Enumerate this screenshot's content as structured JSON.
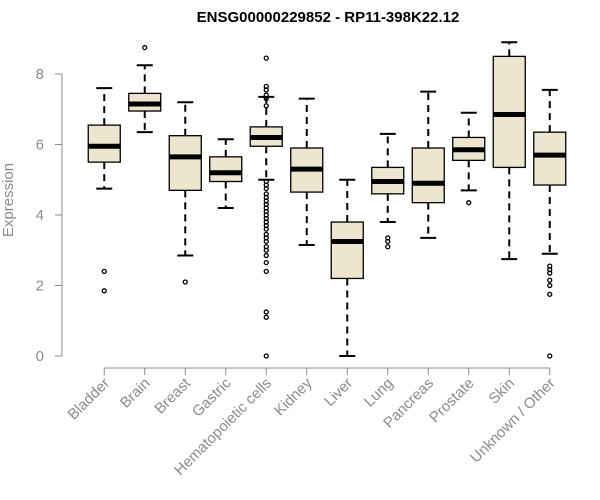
{
  "chart_data": {
    "type": "boxplot",
    "title": "ENSG00000229852 - RP11-398K22.12",
    "ylabel": "Expression",
    "xlabel": "",
    "ylim": [
      0,
      9
    ],
    "yticks": [
      0,
      2,
      4,
      6,
      8
    ],
    "grid": false,
    "legend": "none",
    "colors": {
      "box_fill": "#ede6cf",
      "box_stroke": "#000000",
      "axis": "#8c8c8c"
    },
    "categories": [
      "Bladder",
      "Brain",
      "Breast",
      "Gastric",
      "Hematopoietic cells",
      "Kidney",
      "Liver",
      "Lung",
      "Pancreas",
      "Prostate",
      "Skin",
      "Unknown / Other"
    ],
    "boxes": [
      {
        "q1": 5.5,
        "median": 5.95,
        "q3": 6.55,
        "whisker_low": 4.75,
        "whisker_high": 7.6,
        "outliers": [
          2.4,
          1.85
        ]
      },
      {
        "q1": 6.95,
        "median": 7.15,
        "q3": 7.45,
        "whisker_low": 6.35,
        "whisker_high": 8.25,
        "outliers": [
          8.75
        ]
      },
      {
        "q1": 4.7,
        "median": 5.65,
        "q3": 6.25,
        "whisker_low": 2.85,
        "whisker_high": 7.2,
        "outliers": [
          2.1
        ]
      },
      {
        "q1": 4.95,
        "median": 5.2,
        "q3": 5.65,
        "whisker_low": 4.2,
        "whisker_high": 6.15,
        "outliers": []
      },
      {
        "q1": 5.95,
        "median": 6.2,
        "q3": 6.5,
        "whisker_low": 5.0,
        "whisker_high": 7.35,
        "outliers": [
          8.45,
          7.65,
          7.55,
          7.4,
          7.3,
          7.1,
          4.95,
          4.85,
          4.75,
          4.6,
          4.5,
          4.4,
          4.3,
          4.2,
          4.1,
          4.0,
          3.9,
          3.8,
          3.7,
          3.6,
          3.45,
          3.35,
          3.25,
          3.1,
          3.0,
          2.85,
          2.65,
          2.4,
          1.25,
          1.1,
          0.0
        ]
      },
      {
        "q1": 4.65,
        "median": 5.3,
        "q3": 5.9,
        "whisker_low": 3.15,
        "whisker_high": 7.3,
        "outliers": []
      },
      {
        "q1": 2.2,
        "median": 3.25,
        "q3": 3.8,
        "whisker_low": 0.0,
        "whisker_high": 5.0,
        "outliers": []
      },
      {
        "q1": 4.6,
        "median": 4.95,
        "q3": 5.35,
        "whisker_low": 3.8,
        "whisker_high": 6.3,
        "outliers": [
          3.35,
          3.25,
          3.1
        ]
      },
      {
        "q1": 4.35,
        "median": 4.9,
        "q3": 5.9,
        "whisker_low": 3.35,
        "whisker_high": 7.5,
        "outliers": []
      },
      {
        "q1": 5.55,
        "median": 5.85,
        "q3": 6.2,
        "whisker_low": 4.7,
        "whisker_high": 6.9,
        "outliers": [
          4.35
        ]
      },
      {
        "q1": 5.35,
        "median": 6.85,
        "q3": 8.5,
        "whisker_low": 2.75,
        "whisker_high": 8.9,
        "outliers": []
      },
      {
        "q1": 4.85,
        "median": 5.7,
        "q3": 6.35,
        "whisker_low": 2.9,
        "whisker_high": 7.55,
        "outliers": [
          2.55,
          2.45,
          2.35,
          2.15,
          2.0,
          1.75,
          0.0
        ]
      }
    ]
  }
}
